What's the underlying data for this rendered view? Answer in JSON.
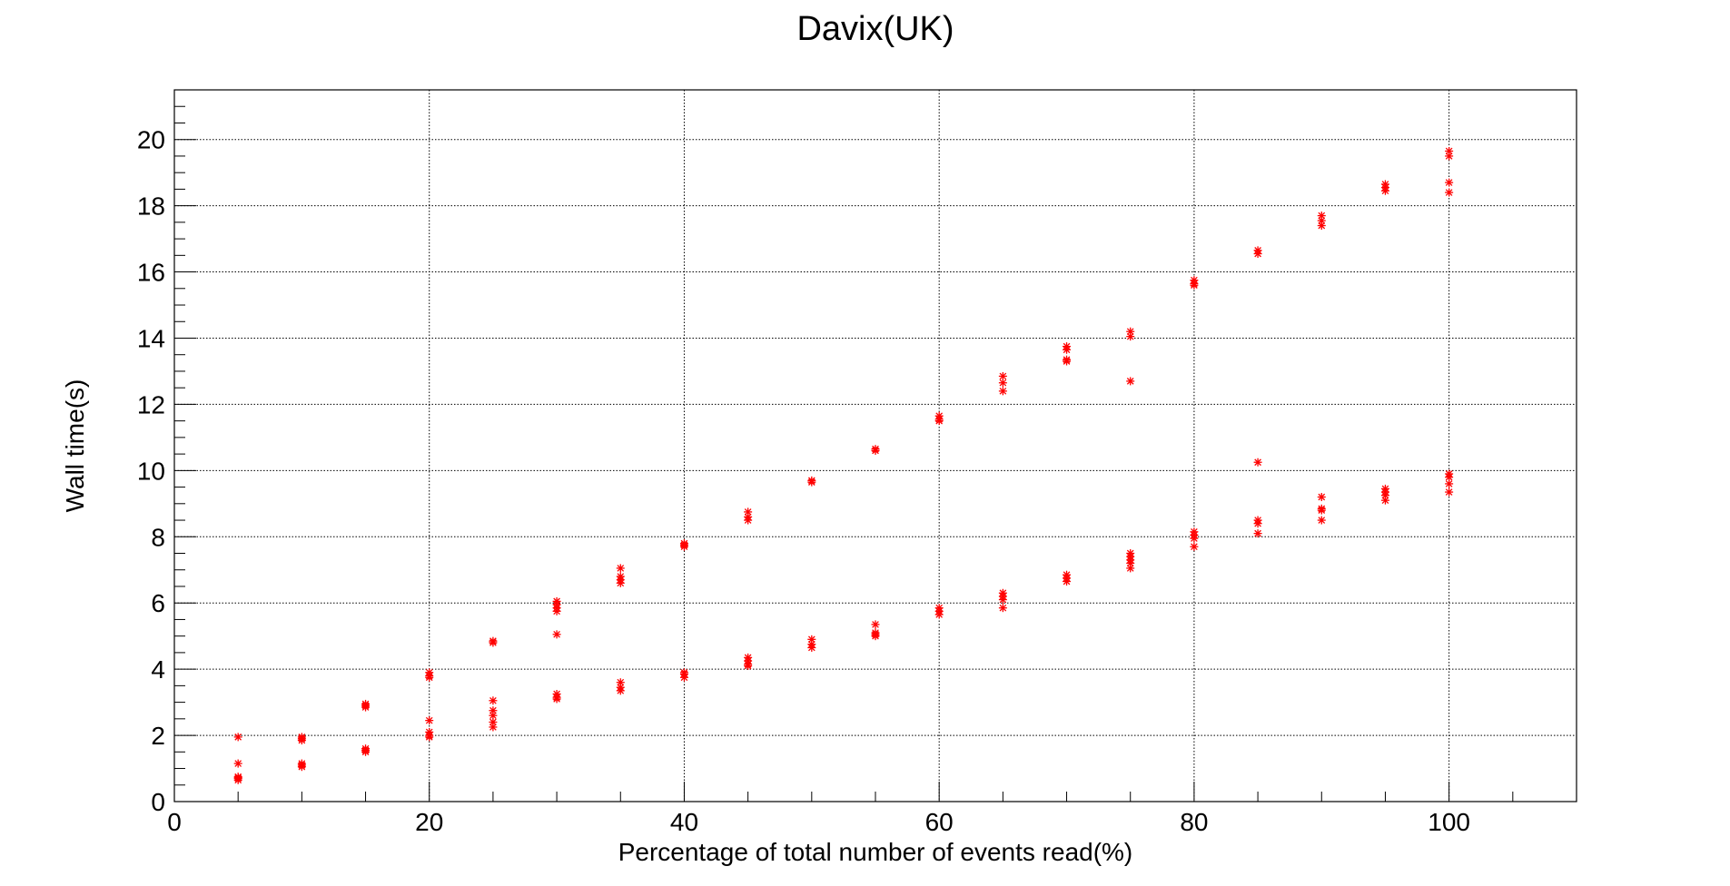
{
  "chart_data": {
    "type": "scatter",
    "title": "Davix(UK)",
    "xlabel": "Percentage of total number of events read(%)",
    "ylabel": "Wall time(s)",
    "xlim": [
      0,
      110
    ],
    "ylim": [
      0,
      21.5
    ],
    "x_ticks": [
      "0",
      "20",
      "40",
      "60",
      "80",
      "100"
    ],
    "y_ticks": [
      "0",
      "2",
      "4",
      "6",
      "8",
      "10",
      "12",
      "14",
      "16",
      "18",
      "20"
    ],
    "grid": true,
    "legend": "none",
    "marker": "asterisk",
    "marker_color": "#ff0000",
    "series": [
      {
        "points": [
          [
            5,
            1.95
          ],
          [
            5,
            1.15
          ],
          [
            5,
            0.75
          ],
          [
            5,
            0.7
          ],
          [
            5,
            0.65
          ],
          [
            5,
            0.72
          ],
          [
            10,
            1.95
          ],
          [
            10,
            1.9
          ],
          [
            10,
            1.85
          ],
          [
            10,
            1.15
          ],
          [
            10,
            1.1
          ],
          [
            10,
            1.05
          ],
          [
            15,
            2.95
          ],
          [
            15,
            2.9
          ],
          [
            15,
            2.85
          ],
          [
            15,
            1.6
          ],
          [
            15,
            1.55
          ],
          [
            15,
            1.5
          ],
          [
            20,
            3.9
          ],
          [
            20,
            3.8
          ],
          [
            20,
            3.75
          ],
          [
            20,
            2.45
          ],
          [
            20,
            2.1
          ],
          [
            20,
            2.0
          ],
          [
            20,
            1.95
          ],
          [
            25,
            4.85
          ],
          [
            25,
            4.8
          ],
          [
            25,
            3.05
          ],
          [
            25,
            2.75
          ],
          [
            25,
            2.6
          ],
          [
            25,
            2.4
          ],
          [
            25,
            2.25
          ],
          [
            30,
            6.05
          ],
          [
            30,
            5.95
          ],
          [
            30,
            5.85
          ],
          [
            30,
            5.75
          ],
          [
            30,
            5.05
          ],
          [
            30,
            3.25
          ],
          [
            30,
            3.15
          ],
          [
            30,
            3.1
          ],
          [
            35,
            7.05
          ],
          [
            35,
            6.8
          ],
          [
            35,
            6.7
          ],
          [
            35,
            6.6
          ],
          [
            35,
            3.6
          ],
          [
            35,
            3.45
          ],
          [
            35,
            3.35
          ],
          [
            40,
            7.8
          ],
          [
            40,
            7.75
          ],
          [
            40,
            7.7
          ],
          [
            40,
            3.9
          ],
          [
            40,
            3.85
          ],
          [
            40,
            3.75
          ],
          [
            45,
            8.75
          ],
          [
            45,
            8.6
          ],
          [
            45,
            8.5
          ],
          [
            45,
            4.35
          ],
          [
            45,
            4.25
          ],
          [
            45,
            4.15
          ],
          [
            45,
            4.1
          ],
          [
            50,
            9.7
          ],
          [
            50,
            9.65
          ],
          [
            50,
            4.9
          ],
          [
            50,
            4.75
          ],
          [
            50,
            4.65
          ],
          [
            55,
            10.6
          ],
          [
            55,
            10.65
          ],
          [
            55,
            5.35
          ],
          [
            55,
            5.1
          ],
          [
            55,
            5.05
          ],
          [
            55,
            5.0
          ],
          [
            60,
            11.65
          ],
          [
            60,
            11.55
          ],
          [
            60,
            11.5
          ],
          [
            60,
            5.85
          ],
          [
            60,
            5.75
          ],
          [
            60,
            5.65
          ],
          [
            65,
            12.85
          ],
          [
            65,
            12.65
          ],
          [
            65,
            12.4
          ],
          [
            65,
            6.3
          ],
          [
            65,
            6.2
          ],
          [
            65,
            6.1
          ],
          [
            65,
            5.85
          ],
          [
            70,
            13.75
          ],
          [
            70,
            13.65
          ],
          [
            70,
            13.35
          ],
          [
            70,
            13.3
          ],
          [
            70,
            6.85
          ],
          [
            70,
            6.75
          ],
          [
            70,
            6.65
          ],
          [
            75,
            14.2
          ],
          [
            75,
            14.05
          ],
          [
            75,
            12.7
          ],
          [
            75,
            7.5
          ],
          [
            75,
            7.4
          ],
          [
            75,
            7.3
          ],
          [
            75,
            7.2
          ],
          [
            75,
            7.05
          ],
          [
            80,
            15.75
          ],
          [
            80,
            15.65
          ],
          [
            80,
            15.6
          ],
          [
            80,
            8.15
          ],
          [
            80,
            8.05
          ],
          [
            80,
            7.95
          ],
          [
            80,
            7.7
          ],
          [
            85,
            16.65
          ],
          [
            85,
            16.55
          ],
          [
            85,
            10.25
          ],
          [
            85,
            8.5
          ],
          [
            85,
            8.4
          ],
          [
            85,
            8.1
          ],
          [
            90,
            17.7
          ],
          [
            90,
            17.55
          ],
          [
            90,
            17.4
          ],
          [
            90,
            9.2
          ],
          [
            90,
            8.85
          ],
          [
            90,
            8.8
          ],
          [
            90,
            8.5
          ],
          [
            95,
            18.65
          ],
          [
            95,
            18.55
          ],
          [
            95,
            18.45
          ],
          [
            95,
            9.45
          ],
          [
            95,
            9.35
          ],
          [
            95,
            9.25
          ],
          [
            95,
            9.1
          ],
          [
            100,
            19.65
          ],
          [
            100,
            19.5
          ],
          [
            100,
            18.7
          ],
          [
            100,
            18.4
          ],
          [
            100,
            9.9
          ],
          [
            100,
            9.8
          ],
          [
            100,
            9.6
          ],
          [
            100,
            9.35
          ]
        ]
      }
    ]
  }
}
